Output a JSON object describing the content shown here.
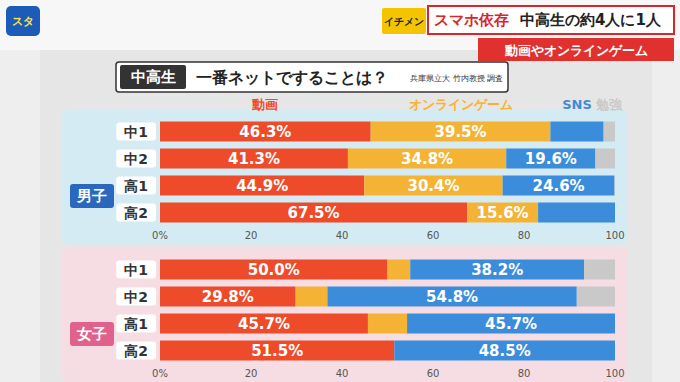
{
  "header": {
    "logo": "スタ",
    "badge": "イチメン",
    "headline_tag": "スマホ依存",
    "headline": "中高生の約4人に1人",
    "subheadline": "動画やオンラインゲーム"
  },
  "board": {
    "tag": "中高生",
    "title": "一番ネットですることは？",
    "source": "兵庫県立大 竹内教授 調査"
  },
  "chart_data": [
    {
      "type": "bar",
      "title": "男子",
      "orientation": "horizontal",
      "stacked": true,
      "data_labels": true,
      "grid": false,
      "legend": "top",
      "categories": [
        "中1",
        "中2",
        "高1",
        "高2"
      ],
      "xlim": [
        0,
        100
      ],
      "xticks": [
        {
          "value": 0,
          "label": "0%"
        },
        20,
        40,
        60,
        80,
        100
      ],
      "series": [
        {
          "name": "動画",
          "color": "#ee4b2b",
          "values": [
            46.3,
            41.3,
            44.9,
            67.5
          ],
          "value_labels": [
            "46.3%",
            "41.3%",
            "44.9%",
            "67.5%"
          ]
        },
        {
          "name": "オンラインゲーム",
          "color": "#f5b335",
          "values": [
            39.5,
            34.8,
            30.4,
            15.6
          ],
          "value_labels": [
            "39.5%",
            "34.8%",
            "30.4%",
            "15.6%"
          ]
        },
        {
          "name": "SNS",
          "color": "#3b8ddb",
          "values": [
            11.7,
            19.6,
            24.6,
            16.9
          ],
          "value_labels": [
            null,
            "19.6%",
            "24.6%",
            null
          ]
        },
        {
          "name": "勉強",
          "color": "#c9c9c9",
          "values": [
            2.5,
            4.3,
            0.1,
            0
          ],
          "value_labels": [
            null,
            null,
            null,
            null
          ]
        }
      ]
    },
    {
      "type": "bar",
      "title": "女子",
      "orientation": "horizontal",
      "stacked": true,
      "data_labels": true,
      "grid": false,
      "categories": [
        "中1",
        "中2",
        "高1",
        "高2"
      ],
      "xlim": [
        0,
        100
      ],
      "xticks": [
        {
          "value": 0,
          "label": "0%"
        },
        20,
        40,
        60,
        80,
        100
      ],
      "series": [
        {
          "name": "動画",
          "color": "#ee4b2b",
          "values": [
            50.0,
            29.8,
            45.7,
            51.5
          ],
          "value_labels": [
            "50.0%",
            "29.8%",
            "45.7%",
            "51.5%"
          ]
        },
        {
          "name": "オンラインゲーム",
          "color": "#f5b335",
          "values": [
            5.0,
            7.0,
            8.6,
            0
          ],
          "value_labels": [
            null,
            null,
            null,
            null
          ]
        },
        {
          "name": "SNS",
          "color": "#3b8ddb",
          "values": [
            38.2,
            54.8,
            45.7,
            48.5
          ],
          "value_labels": [
            "38.2%",
            "54.8%",
            "45.7%",
            "48.5%"
          ]
        },
        {
          "name": "勉強",
          "color": "#c9c9c9",
          "values": [
            6.8,
            8.4,
            0,
            0
          ],
          "value_labels": [
            null,
            null,
            null,
            null
          ]
        }
      ]
    }
  ]
}
